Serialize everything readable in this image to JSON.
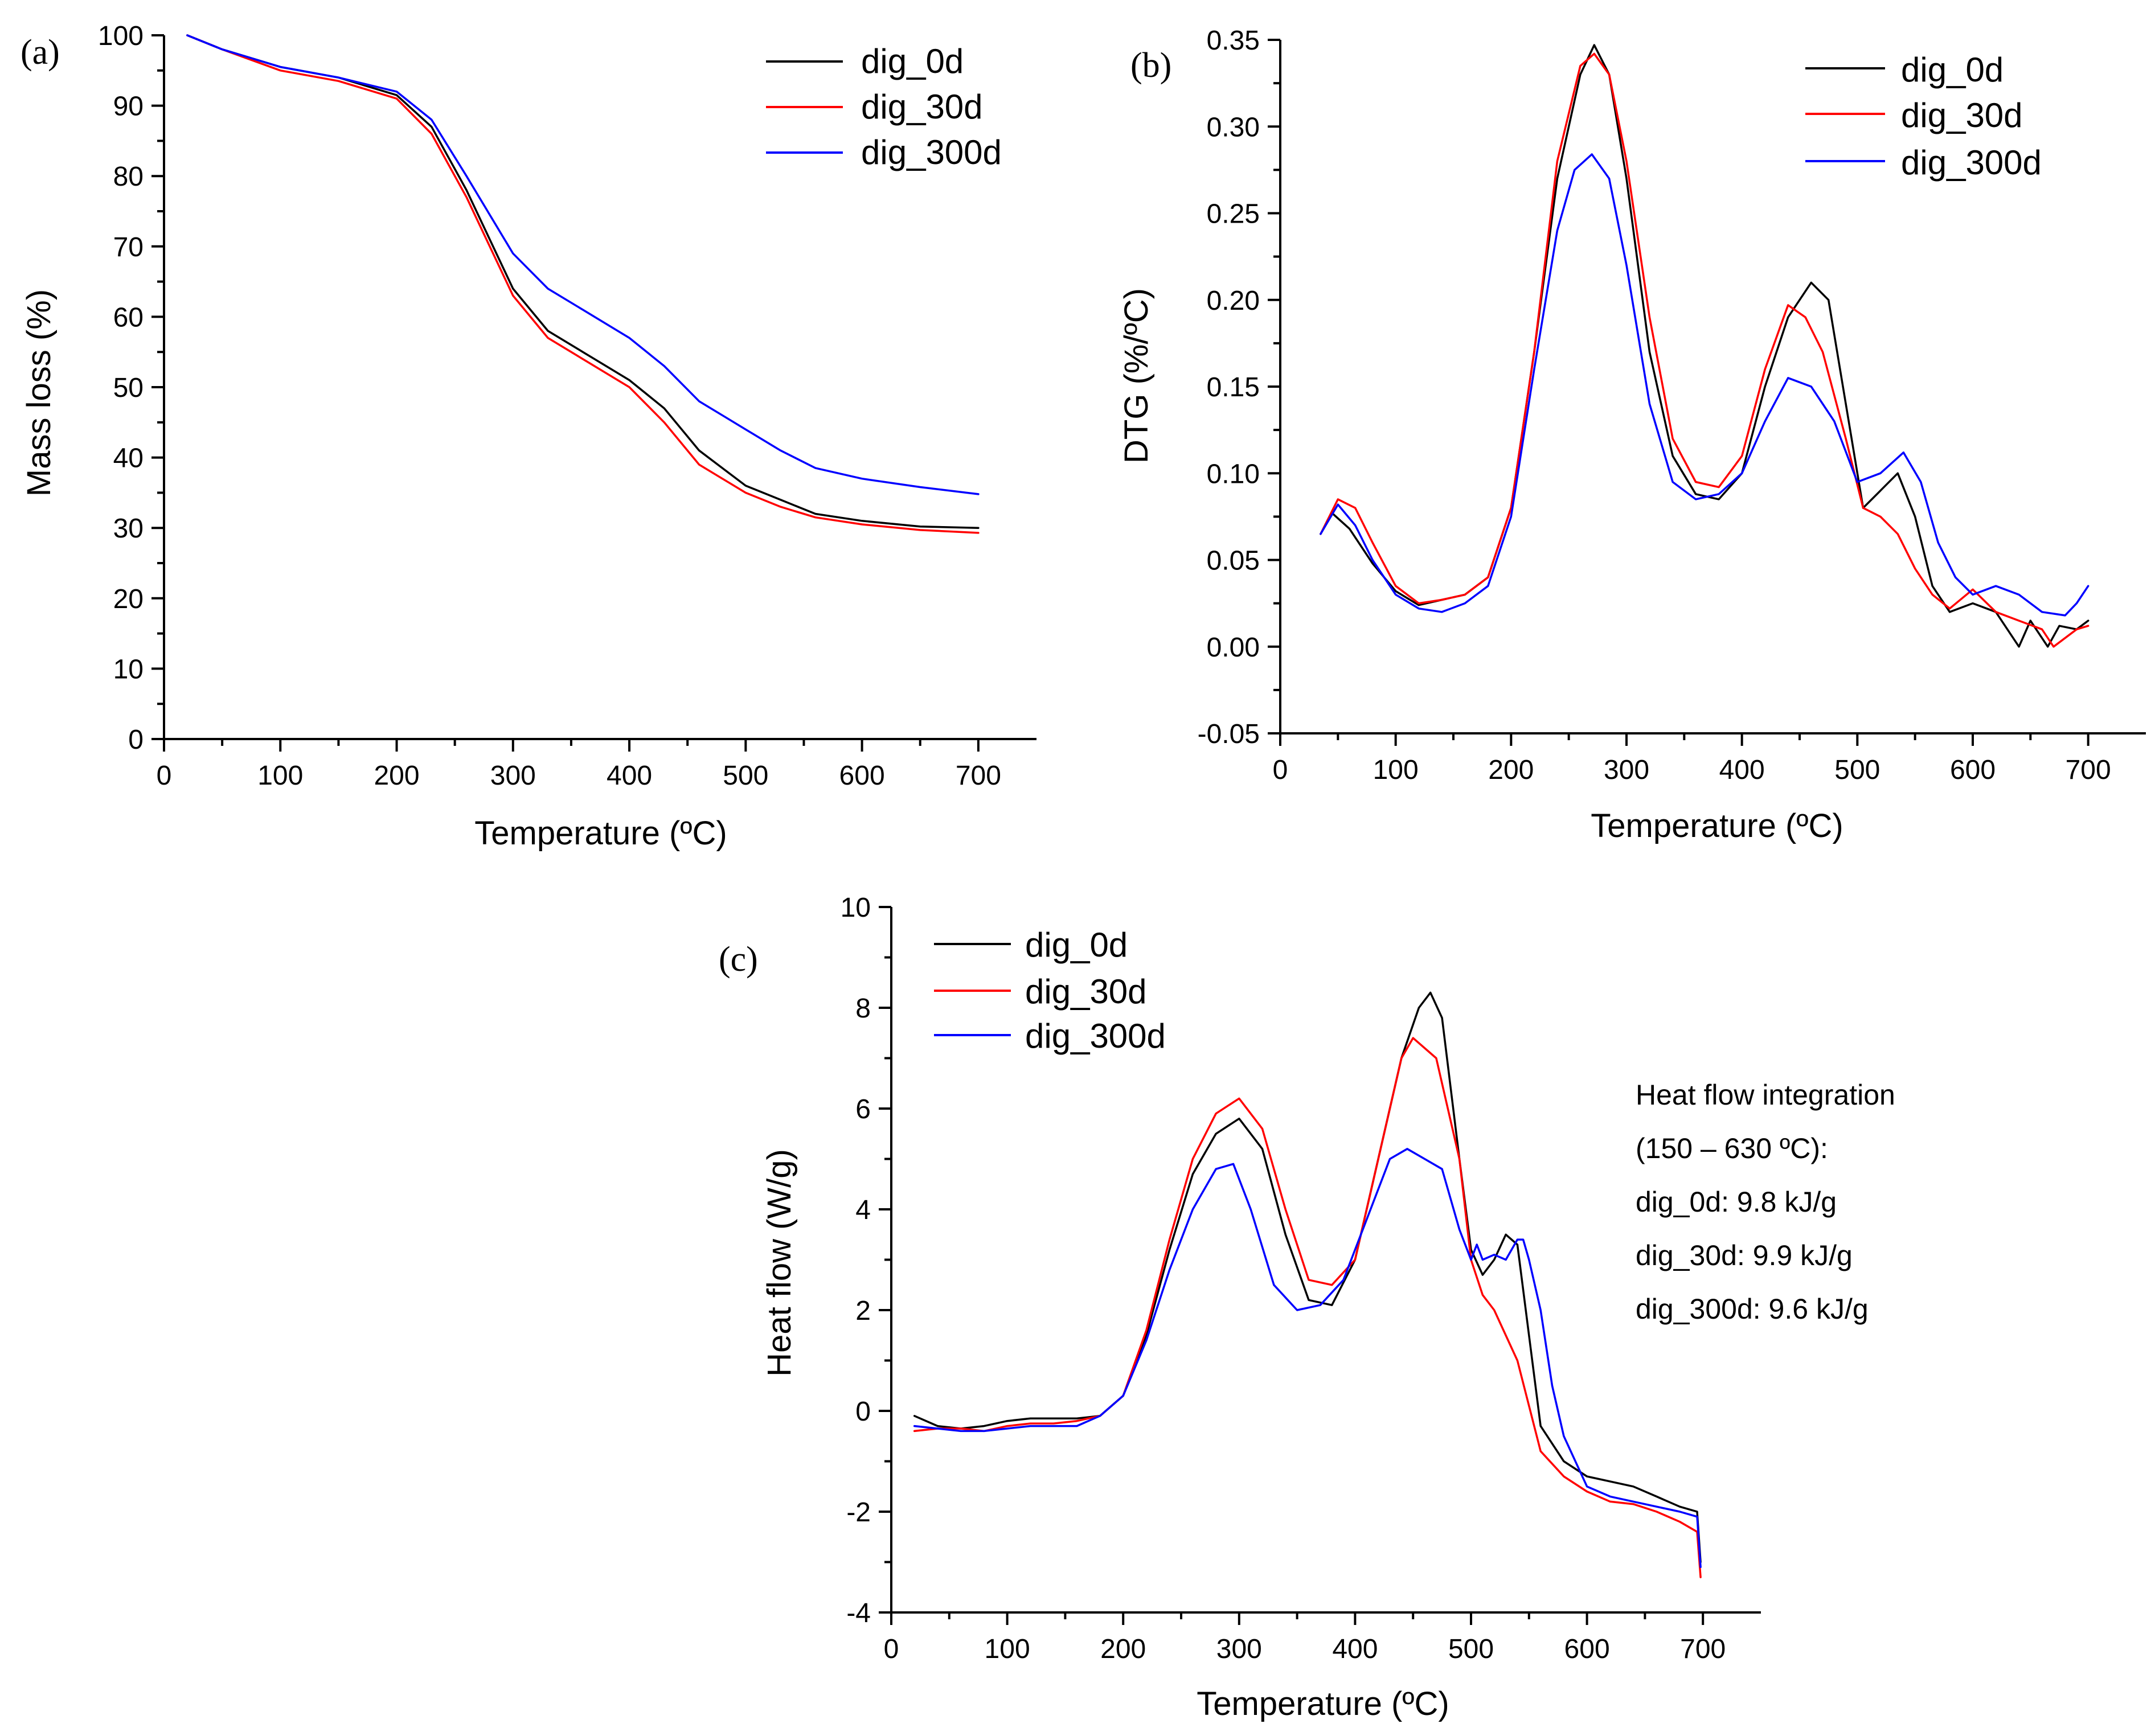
{
  "chart_data": [
    {
      "id": "a",
      "type": "line",
      "panel_label": "(a)",
      "xlabel": "Temperature (ºC)",
      "ylabel": "Mass loss (%)",
      "xlim": [
        0,
        750
      ],
      "ylim": [
        0,
        100
      ],
      "xticks": [
        0,
        100,
        200,
        300,
        400,
        500,
        600,
        700
      ],
      "yticks": [
        0,
        10,
        20,
        30,
        40,
        50,
        60,
        70,
        80,
        90,
        100
      ],
      "xtick_labels": [
        "0",
        "100",
        "200",
        "300",
        "400",
        "500",
        "600",
        "700"
      ],
      "ytick_labels": [
        "0",
        "10",
        "20",
        "30",
        "40",
        "50",
        "60",
        "70",
        "80",
        "90",
        "100"
      ],
      "legend_position": "top-right",
      "series": [
        {
          "name": "dig_0d",
          "color": "#000000",
          "x": [
            20,
            50,
            100,
            150,
            200,
            230,
            260,
            300,
            330,
            360,
            400,
            430,
            460,
            500,
            530,
            560,
            600,
            650,
            700
          ],
          "y": [
            100,
            98,
            95.5,
            94,
            91.5,
            87,
            78,
            64,
            58,
            55,
            51,
            47,
            41,
            36,
            34,
            32,
            31,
            30.2,
            30
          ]
        },
        {
          "name": "dig_30d",
          "color": "#ff0000",
          "x": [
            20,
            50,
            100,
            150,
            200,
            230,
            260,
            300,
            330,
            360,
            400,
            430,
            460,
            500,
            530,
            560,
            600,
            650,
            700
          ],
          "y": [
            100,
            98,
            95,
            93.5,
            91,
            86,
            77,
            63,
            57,
            54,
            50,
            45,
            39,
            35,
            33,
            31.5,
            30.5,
            29.7,
            29.3
          ]
        },
        {
          "name": "dig_300d",
          "color": "#0000ff",
          "x": [
            20,
            50,
            100,
            150,
            200,
            230,
            260,
            300,
            330,
            360,
            400,
            430,
            460,
            500,
            530,
            560,
            600,
            650,
            700
          ],
          "y": [
            100,
            98,
            95.5,
            94,
            92,
            88,
            80,
            69,
            64,
            61,
            57,
            53,
            48,
            44,
            41,
            38.5,
            37,
            35.8,
            34.8
          ]
        }
      ]
    },
    {
      "id": "b",
      "type": "line",
      "panel_label": "(b)",
      "xlabel": "Temperature (ºC)",
      "ylabel": "DTG (%/ºC)",
      "xlim": [
        0,
        750
      ],
      "ylim": [
        -0.05,
        0.35
      ],
      "xticks": [
        0,
        100,
        200,
        300,
        400,
        500,
        600,
        700
      ],
      "yticks": [
        -0.05,
        0,
        0.05,
        0.1,
        0.15,
        0.2,
        0.25,
        0.3,
        0.35
      ],
      "xtick_labels": [
        "0",
        "100",
        "200",
        "300",
        "400",
        "500",
        "600",
        "700"
      ],
      "ytick_labels": [
        "-0.05",
        "0.00",
        "0.05",
        "0.10",
        "0.15",
        "0.20",
        "0.25",
        "0.30",
        "0.35"
      ],
      "legend_position": "top-right",
      "series": [
        {
          "name": "dig_0d",
          "color": "#000000",
          "x": [
            35,
            45,
            60,
            80,
            100,
            120,
            140,
            160,
            180,
            200,
            220,
            240,
            260,
            272,
            285,
            300,
            320,
            340,
            360,
            380,
            400,
            420,
            440,
            460,
            475,
            490,
            505,
            520,
            535,
            550,
            565,
            580,
            600,
            620,
            640,
            650,
            665,
            675,
            690,
            700
          ],
          "y": [
            0.065,
            0.077,
            0.068,
            0.048,
            0.032,
            0.024,
            0.027,
            0.03,
            0.04,
            0.08,
            0.17,
            0.27,
            0.33,
            0.347,
            0.33,
            0.27,
            0.17,
            0.11,
            0.088,
            0.085,
            0.1,
            0.15,
            0.19,
            0.21,
            0.2,
            0.14,
            0.08,
            0.09,
            0.1,
            0.075,
            0.035,
            0.02,
            0.025,
            0.02,
            0.0,
            0.015,
            0.0,
            0.012,
            0.01,
            0.015
          ]
        },
        {
          "name": "dig_30d",
          "color": "#ff0000",
          "x": [
            35,
            50,
            65,
            80,
            100,
            120,
            140,
            160,
            180,
            200,
            220,
            240,
            260,
            272,
            285,
            300,
            320,
            340,
            360,
            380,
            400,
            420,
            440,
            455,
            470,
            490,
            505,
            520,
            535,
            550,
            565,
            580,
            600,
            620,
            640,
            660,
            670,
            690,
            700
          ],
          "y": [
            0.065,
            0.085,
            0.08,
            0.06,
            0.035,
            0.025,
            0.027,
            0.03,
            0.04,
            0.08,
            0.17,
            0.28,
            0.335,
            0.342,
            0.33,
            0.28,
            0.19,
            0.12,
            0.095,
            0.092,
            0.11,
            0.16,
            0.197,
            0.19,
            0.17,
            0.12,
            0.08,
            0.075,
            0.065,
            0.045,
            0.03,
            0.022,
            0.033,
            0.02,
            0.015,
            0.01,
            0.0,
            0.01,
            0.012
          ]
        },
        {
          "name": "dig_300d",
          "color": "#0000ff",
          "x": [
            35,
            50,
            65,
            80,
            100,
            120,
            140,
            160,
            180,
            200,
            220,
            240,
            255,
            270,
            285,
            300,
            320,
            340,
            360,
            380,
            400,
            420,
            440,
            460,
            480,
            500,
            520,
            540,
            555,
            570,
            585,
            600,
            620,
            640,
            660,
            680,
            690,
            700
          ],
          "y": [
            0.065,
            0.082,
            0.07,
            0.05,
            0.03,
            0.022,
            0.02,
            0.025,
            0.035,
            0.075,
            0.16,
            0.24,
            0.275,
            0.284,
            0.27,
            0.22,
            0.14,
            0.095,
            0.085,
            0.088,
            0.1,
            0.13,
            0.155,
            0.15,
            0.13,
            0.095,
            0.1,
            0.112,
            0.095,
            0.06,
            0.04,
            0.03,
            0.035,
            0.03,
            0.02,
            0.018,
            0.025,
            0.035
          ]
        }
      ]
    },
    {
      "id": "c",
      "type": "line",
      "panel_label": "(c)",
      "xlabel": "Temperature (ºC)",
      "ylabel": "Heat flow (W/g)",
      "xlim": [
        0,
        750
      ],
      "ylim": [
        -4,
        10
      ],
      "xticks": [
        0,
        100,
        200,
        300,
        400,
        500,
        600,
        700
      ],
      "yticks": [
        -4,
        -2,
        0,
        2,
        4,
        6,
        8,
        10
      ],
      "xtick_labels": [
        "0",
        "100",
        "200",
        "300",
        "400",
        "500",
        "600",
        "700"
      ],
      "ytick_labels": [
        "-4",
        "-2",
        "0",
        "2",
        "4",
        "6",
        "8",
        "10"
      ],
      "legend_position": "top-left",
      "annotation_lines": [
        "Heat flow integration",
        "(150 – 630 ºC):",
        "dig_0d: 9.8 kJ/g",
        "dig_30d: 9.9 kJ/g",
        "dig_300d: 9.6 kJ/g"
      ],
      "series": [
        {
          "name": "dig_0d",
          "color": "#000000",
          "x": [
            20,
            40,
            60,
            80,
            100,
            120,
            140,
            160,
            180,
            200,
            220,
            240,
            260,
            280,
            300,
            320,
            340,
            360,
            380,
            400,
            420,
            440,
            455,
            465,
            475,
            490,
            500,
            510,
            520,
            530,
            540,
            550,
            560,
            580,
            600,
            620,
            640,
            660,
            680,
            695,
            698
          ],
          "y": [
            -0.1,
            -0.3,
            -0.35,
            -0.3,
            -0.2,
            -0.15,
            -0.15,
            -0.15,
            -0.1,
            0.3,
            1.5,
            3.2,
            4.7,
            5.5,
            5.8,
            5.2,
            3.5,
            2.2,
            2.1,
            3.0,
            5.0,
            7.0,
            8.0,
            8.3,
            7.8,
            5.0,
            3.2,
            2.7,
            3.0,
            3.5,
            3.3,
            1.5,
            -0.3,
            -1.0,
            -1.3,
            -1.4,
            -1.5,
            -1.7,
            -1.9,
            -2.0,
            -3.0
          ]
        },
        {
          "name": "dig_30d",
          "color": "#ff0000",
          "x": [
            20,
            40,
            60,
            80,
            100,
            120,
            140,
            160,
            180,
            200,
            220,
            240,
            260,
            280,
            300,
            320,
            340,
            360,
            380,
            400,
            420,
            440,
            450,
            470,
            490,
            500,
            510,
            520,
            540,
            560,
            580,
            600,
            620,
            640,
            660,
            680,
            695,
            698
          ],
          "y": [
            -0.4,
            -0.35,
            -0.35,
            -0.4,
            -0.3,
            -0.25,
            -0.25,
            -0.2,
            -0.1,
            0.3,
            1.6,
            3.4,
            5.0,
            5.9,
            6.2,
            5.6,
            4.0,
            2.6,
            2.5,
            3.0,
            5.0,
            7.0,
            7.4,
            7.0,
            5.0,
            3.0,
            2.3,
            2.0,
            1.0,
            -0.8,
            -1.3,
            -1.6,
            -1.8,
            -1.85,
            -2.0,
            -2.2,
            -2.4,
            -3.3
          ]
        },
        {
          "name": "dig_300d",
          "color": "#0000ff",
          "x": [
            20,
            40,
            60,
            80,
            100,
            120,
            140,
            160,
            180,
            200,
            220,
            240,
            260,
            280,
            295,
            310,
            330,
            350,
            370,
            390,
            410,
            430,
            445,
            460,
            475,
            490,
            500,
            505,
            510,
            520,
            530,
            540,
            545,
            550,
            560,
            570,
            580,
            600,
            620,
            640,
            660,
            680,
            695,
            698
          ],
          "y": [
            -0.3,
            -0.35,
            -0.4,
            -0.4,
            -0.35,
            -0.3,
            -0.3,
            -0.3,
            -0.1,
            0.3,
            1.4,
            2.8,
            4.0,
            4.8,
            4.9,
            4.0,
            2.5,
            2.0,
            2.1,
            2.6,
            3.8,
            5.0,
            5.2,
            5.0,
            4.8,
            3.6,
            3.0,
            3.3,
            3.0,
            3.1,
            3.0,
            3.4,
            3.4,
            3.0,
            2.0,
            0.5,
            -0.5,
            -1.5,
            -1.7,
            -1.8,
            -1.9,
            -2.0,
            -2.1,
            -3.1
          ]
        }
      ]
    }
  ]
}
